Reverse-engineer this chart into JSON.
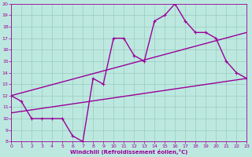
{
  "background_color": "#bde8e0",
  "line_color": "#990099",
  "grid_color": "#99ccbb",
  "xlabel": "Windchill (Refroidissement éolien,°C)",
  "xlim": [
    0,
    23
  ],
  "ylim": [
    8,
    20
  ],
  "yticks": [
    8,
    9,
    10,
    11,
    12,
    13,
    14,
    15,
    16,
    17,
    18,
    19,
    20
  ],
  "xticks": [
    0,
    1,
    2,
    3,
    4,
    5,
    6,
    7,
    8,
    9,
    10,
    11,
    12,
    13,
    14,
    15,
    16,
    17,
    18,
    19,
    20,
    21,
    22,
    23
  ],
  "line1_x": [
    0,
    1,
    2,
    3,
    4,
    5,
    6,
    7,
    8,
    9,
    10,
    11,
    12,
    13,
    14,
    15,
    16,
    17,
    18,
    19,
    20,
    21,
    22,
    23
  ],
  "line1_y": [
    12,
    11.5,
    10,
    10,
    10,
    10,
    8.5,
    8,
    13.5,
    13,
    17,
    17,
    15.5,
    15,
    18.5,
    19,
    20,
    18.5,
    17.5,
    17.5,
    17,
    15,
    14,
    13.5
  ],
  "line2_x": [
    0,
    23
  ],
  "line2_y": [
    12,
    17.5
  ],
  "line3_x": [
    0,
    23
  ],
  "line3_y": [
    10.5,
    13.5
  ],
  "marker_size": 3,
  "linewidth": 1.0
}
